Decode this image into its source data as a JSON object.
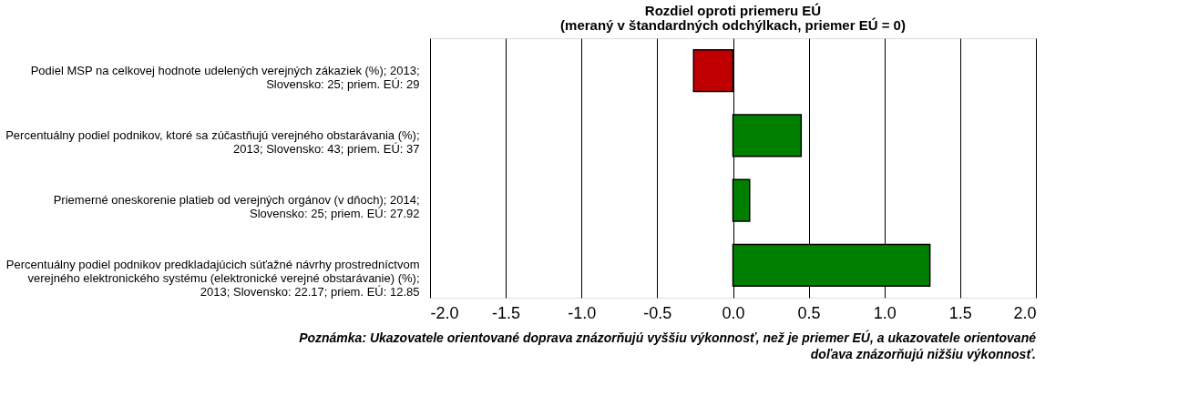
{
  "chart_data": {
    "type": "bar",
    "orientation": "horizontal",
    "title": "Rozdiel oproti priemeru EÚ",
    "subtitle": "(meraný v štandardných odchýlkach, priemer EÚ = 0)",
    "categories": [
      "Podiel MSP na celkovej hodnote udelených verejných zákaziek (%); 2013; Slovensko: 25; priem. EÚ: 29",
      "Percentuálny podiel podnikov, ktoré sa zúčastňujú verejného obstarávania (%); 2013; Slovensko: 43; priem. EÚ: 37",
      "Priemerné oneskorenie platieb od verejných orgánov (v dňoch); 2014; Slovensko: 25; priem. EÚ: 27.92",
      "Percentuálny podiel podnikov predkladajúcich súťažné návrhy prostredníctvom verejného elektronického systému (elektronické verejné obstarávanie) (%); 2013; Slovensko: 22.17; priem. EÚ: 12.85"
    ],
    "values": [
      -0.26,
      0.45,
      0.11,
      1.3
    ],
    "colors": [
      "#c00000",
      "#008000",
      "#008000",
      "#008000"
    ],
    "xlim": [
      -2.0,
      2.0
    ],
    "xticks": [
      {
        "value": -2,
        "label": "-2.0"
      },
      {
        "value": -1.5,
        "label": "-1.5"
      },
      {
        "value": -1,
        "label": "-1.0"
      },
      {
        "value": -0.5,
        "label": "-0.5"
      },
      {
        "value": 0,
        "label": "0.0"
      },
      {
        "value": 0.5,
        "label": "0.5"
      },
      {
        "value": 1,
        "label": "1.0"
      },
      {
        "value": 1.5,
        "label": "1.5"
      },
      {
        "value": 2,
        "label": "2.0"
      }
    ],
    "grid": "x",
    "annotations": [
      "Poznámka: Ukazovatele orientované doprava znázorňujú vyššiu výkonnosť, než je priemer EÚ, a ukazovatele orientované doľava znázorňujú nižšiu výkonnosť."
    ]
  }
}
